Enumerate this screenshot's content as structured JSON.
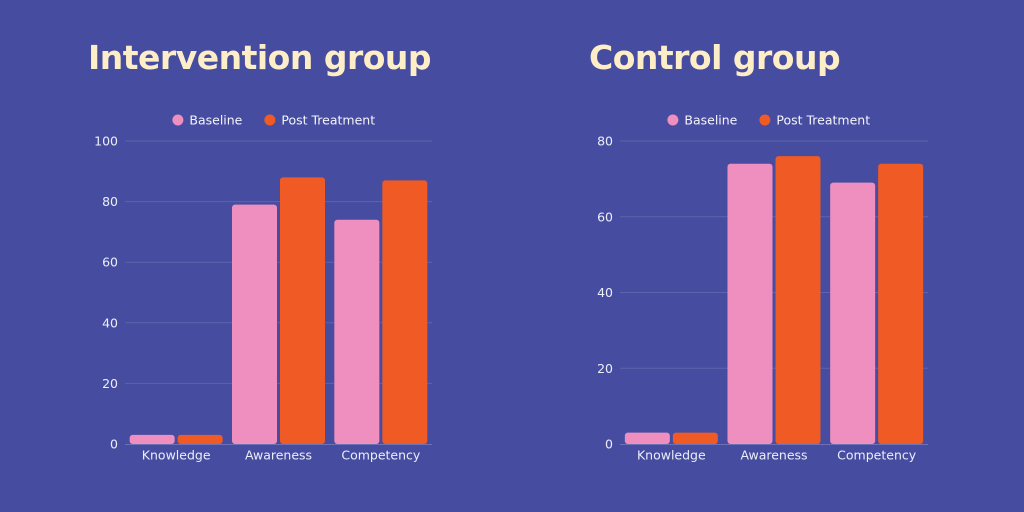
{
  "colors": {
    "background": "#464c9f",
    "title": "#fdeec7",
    "baseline_series": "#ef8fbf",
    "post_series": "#f05a25"
  },
  "chart_data": [
    {
      "type": "bar",
      "title": "Intervention group",
      "categories": [
        "Knowledge",
        "Awareness",
        "Competency"
      ],
      "series": [
        {
          "name": "Baseline",
          "values": [
            3,
            79,
            74
          ]
        },
        {
          "name": "Post Treatment",
          "values": [
            3,
            88,
            87
          ]
        }
      ],
      "ylim": [
        0,
        100
      ],
      "yticks": [
        0,
        20,
        40,
        60,
        80,
        100
      ],
      "grid": true,
      "legend": "top-center"
    },
    {
      "type": "bar",
      "title": "Control group",
      "categories": [
        "Knowledge",
        "Awareness",
        "Competency"
      ],
      "series": [
        {
          "name": "Baseline",
          "values": [
            3,
            74,
            69
          ]
        },
        {
          "name": "Post Treatment",
          "values": [
            3,
            76,
            74
          ]
        }
      ],
      "ylim": [
        0,
        80
      ],
      "yticks": [
        0,
        20,
        40,
        60,
        80
      ],
      "grid": true,
      "legend": "top-center"
    }
  ]
}
